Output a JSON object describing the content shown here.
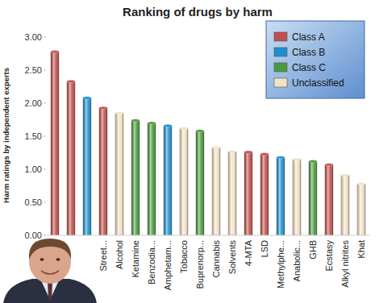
{
  "chart_data": {
    "type": "bar",
    "title": "Ranking of drugs by harm",
    "y_label": "Harm ratings by independent experts",
    "categories": [
      null,
      null,
      null,
      "Street...",
      "Alcohol",
      "Ketamine",
      "Benzodia...",
      "Amphetam...",
      "Tobacco",
      "Buprenorp...",
      "Cannabis",
      "Solvents",
      "4-MTA",
      "LSD",
      "Methylphe...",
      "Anabolic...",
      "GHB",
      "Ecstasy",
      "Alkyl nitrites",
      "Khat"
    ],
    "series": [
      {
        "name": "Class A",
        "color": "#c0504d",
        "values": [
          2.78,
          2.33,
          null,
          1.93,
          null,
          null,
          null,
          null,
          null,
          null,
          null,
          null,
          1.26,
          1.23,
          null,
          null,
          null,
          1.07,
          null,
          null
        ]
      },
      {
        "name": "Class B",
        "color": "#1c8fd0",
        "values": [
          null,
          null,
          2.08,
          null,
          null,
          null,
          null,
          1.66,
          null,
          null,
          null,
          null,
          null,
          null,
          1.18,
          null,
          null,
          null,
          null,
          null
        ]
      },
      {
        "name": "Class C",
        "color": "#4a9a3c",
        "values": [
          null,
          null,
          null,
          null,
          null,
          1.74,
          1.7,
          null,
          null,
          1.58,
          null,
          null,
          null,
          null,
          null,
          null,
          1.12,
          null,
          null,
          null
        ]
      },
      {
        "name": "Unclassified",
        "color": "#f3e2c4",
        "values": [
          null,
          null,
          null,
          null,
          1.85,
          null,
          null,
          null,
          1.62,
          null,
          1.33,
          1.27,
          null,
          null,
          null,
          1.15,
          null,
          null,
          0.91,
          0.78
        ]
      }
    ],
    "stacked": true,
    "ylim": [
      0,
      3
    ],
    "yticks": [
      {
        "value": 0,
        "label": "0.00"
      },
      {
        "value": 0.5,
        "label": "0.50"
      },
      {
        "value": 1,
        "label": "1.00"
      },
      {
        "value": 1.5,
        "label": "1.50"
      },
      {
        "value": 2,
        "label": "2.00"
      },
      {
        "value": 2.5,
        "label": "2.50"
      },
      {
        "value": 3,
        "label": "3.00"
      }
    ],
    "grid": false,
    "legend": "top-right"
  }
}
